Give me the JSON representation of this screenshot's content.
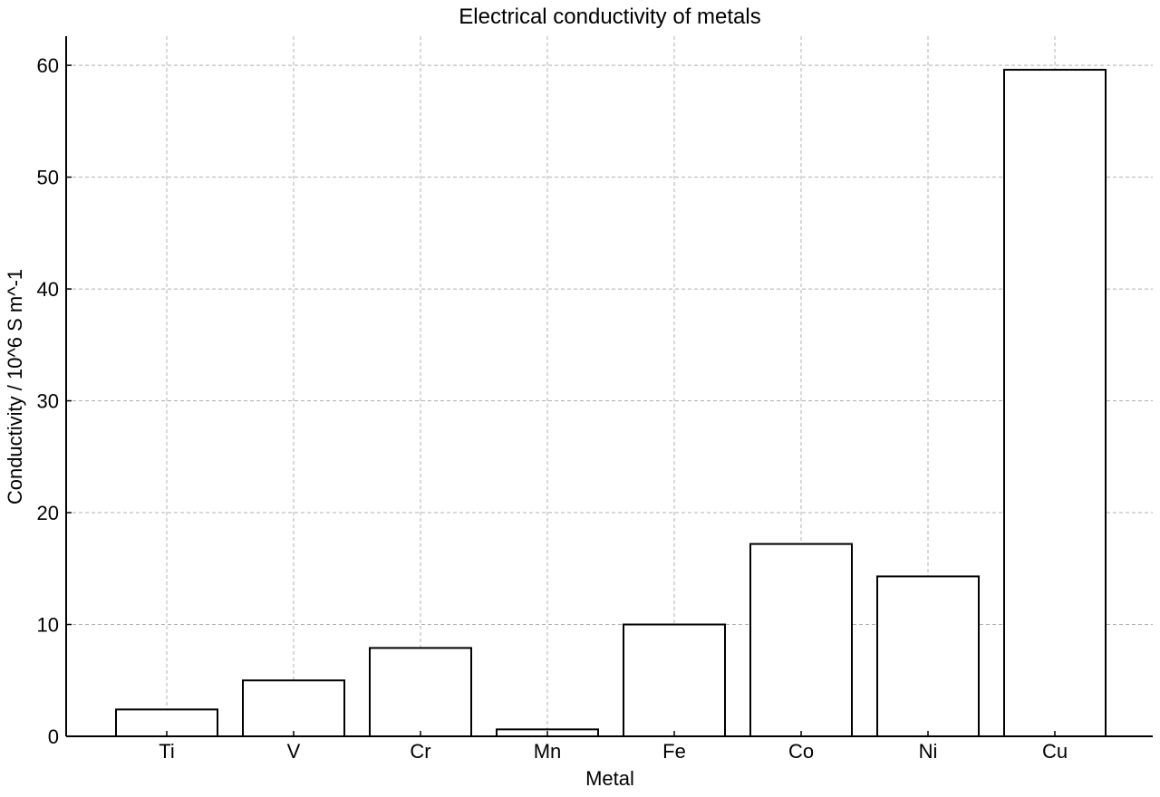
{
  "chart_data": {
    "type": "bar",
    "title": "Electrical conductivity of metals",
    "xlabel": "Metal",
    "ylabel": "Conductivity / 10^6 S m^-1",
    "categories": [
      "Ti",
      "V",
      "Cr",
      "Mn",
      "Fe",
      "Co",
      "Ni",
      "Cu"
    ],
    "values": [
      2.4,
      5.0,
      7.9,
      0.62,
      10.0,
      17.2,
      14.3,
      59.6
    ],
    "ylim": [
      0,
      62.6
    ],
    "yticks": [
      0,
      10,
      20,
      30,
      40,
      50,
      60
    ],
    "grid": true,
    "bar_fill": "#ffffff",
    "bar_edge": "#000000",
    "grid_color": "#b0b0b0"
  }
}
